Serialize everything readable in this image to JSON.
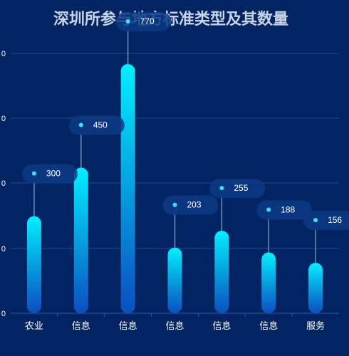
{
  "chart_data": {
    "type": "bar",
    "title": "深圳所参与地方标准类型及其数量",
    "categories": [
      "农业",
      "信息",
      "信息",
      "信息",
      "信息",
      "信息",
      "服务"
    ],
    "values": [
      300,
      450,
      770,
      203,
      255,
      188,
      156
    ],
    "y_tick_labels": [
      "0",
      "0",
      "0",
      "0",
      "0"
    ],
    "ylim": [
      0,
      800
    ],
    "grid": true,
    "legend": "none"
  },
  "colors": {
    "background": "#022462",
    "title": "#c9d3e6",
    "bar_top": "#00f0ff",
    "bar_bottom": "#0a4fc0",
    "label_bg": "#0a3a84",
    "dot": "#33e6ff",
    "grid": "#1f4a8a",
    "axis_text": "#ffffff"
  }
}
